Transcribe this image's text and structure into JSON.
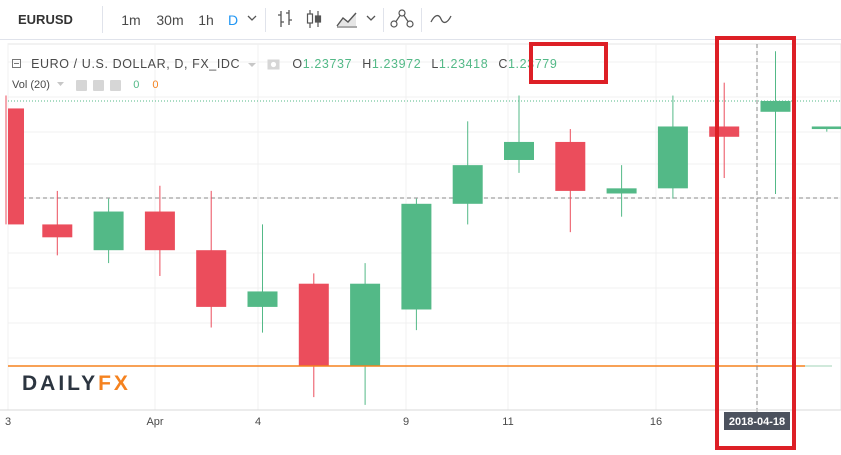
{
  "toolbar": {
    "symbol": "EURUSD",
    "intervals": [
      "1m",
      "30m",
      "1h",
      "D"
    ],
    "active_interval": "D",
    "icons": [
      "chevron-down-icon",
      "bar-chart-icon",
      "candles-icon",
      "area-chart-icon",
      "chevron-down-icon",
      "indicators-icon",
      "compare-icon"
    ]
  },
  "legend": {
    "instrument": "EURO / U.S. DOLLAR, D, FX_IDC",
    "open_label": "O",
    "open": "1.23737",
    "high_label": "H",
    "high": "1.23972",
    "low_label": "L",
    "low": "1.23418",
    "close_label": "C",
    "close": "1.23779"
  },
  "volume": {
    "label": "Vol (20)",
    "v1": "0",
    "v2": "0"
  },
  "brand": {
    "logo_a": "DAILY",
    "logo_b": "FX"
  },
  "crosshair": {
    "date_label": "2018-04-18"
  },
  "colors": {
    "up": "#53b987",
    "down": "#eb4d5c",
    "accent": "#2196f3",
    "annotation": "#dd1f26",
    "volume_line": "#f5821f"
  },
  "chart_data": {
    "type": "candlestick",
    "x_ticks": [
      "3",
      "Apr",
      "4",
      "9",
      "11",
      "16",
      "2018-04-18"
    ],
    "candles": [
      {
        "open": 1.2375,
        "high": 1.238,
        "low": 1.233,
        "close": 1.233
      },
      {
        "open": 1.233,
        "high": 1.2343,
        "low": 1.2318,
        "close": 1.2325
      },
      {
        "open": 1.232,
        "high": 1.234,
        "low": 1.2315,
        "close": 1.2335
      },
      {
        "open": 1.2335,
        "high": 1.2345,
        "low": 1.231,
        "close": 1.232
      },
      {
        "open": 1.232,
        "high": 1.2343,
        "low": 1.229,
        "close": 1.2298
      },
      {
        "open": 1.2298,
        "high": 1.233,
        "low": 1.2288,
        "close": 1.2304
      },
      {
        "open": 1.2307,
        "high": 1.2311,
        "low": 1.2263,
        "close": 1.2275
      },
      {
        "open": 1.2275,
        "high": 1.2315,
        "low": 1.226,
        "close": 1.2307
      },
      {
        "open": 1.2297,
        "high": 1.234,
        "low": 1.2289,
        "close": 1.2338
      },
      {
        "open": 1.2338,
        "high": 1.237,
        "low": 1.233,
        "close": 1.2353
      },
      {
        "open": 1.2355,
        "high": 1.238,
        "low": 1.235,
        "close": 1.2362
      },
      {
        "open": 1.2362,
        "high": 1.2367,
        "low": 1.2327,
        "close": 1.2343
      },
      {
        "open": 1.2342,
        "high": 1.2353,
        "low": 1.2333,
        "close": 1.2344
      },
      {
        "open": 1.2344,
        "high": 1.238,
        "low": 1.234,
        "close": 1.2368
      },
      {
        "open": 1.2368,
        "high": 1.2385,
        "low": 1.2348,
        "close": 1.2364
      },
      {
        "open": 1.23737,
        "high": 1.23972,
        "low": 1.23418,
        "close": 1.23779
      },
      {
        "open": 1.2367,
        "high": 1.2368,
        "low": 1.2366,
        "close": 1.2368
      }
    ],
    "ylim": [
      1.2258,
      1.24
    ],
    "grid": true
  }
}
